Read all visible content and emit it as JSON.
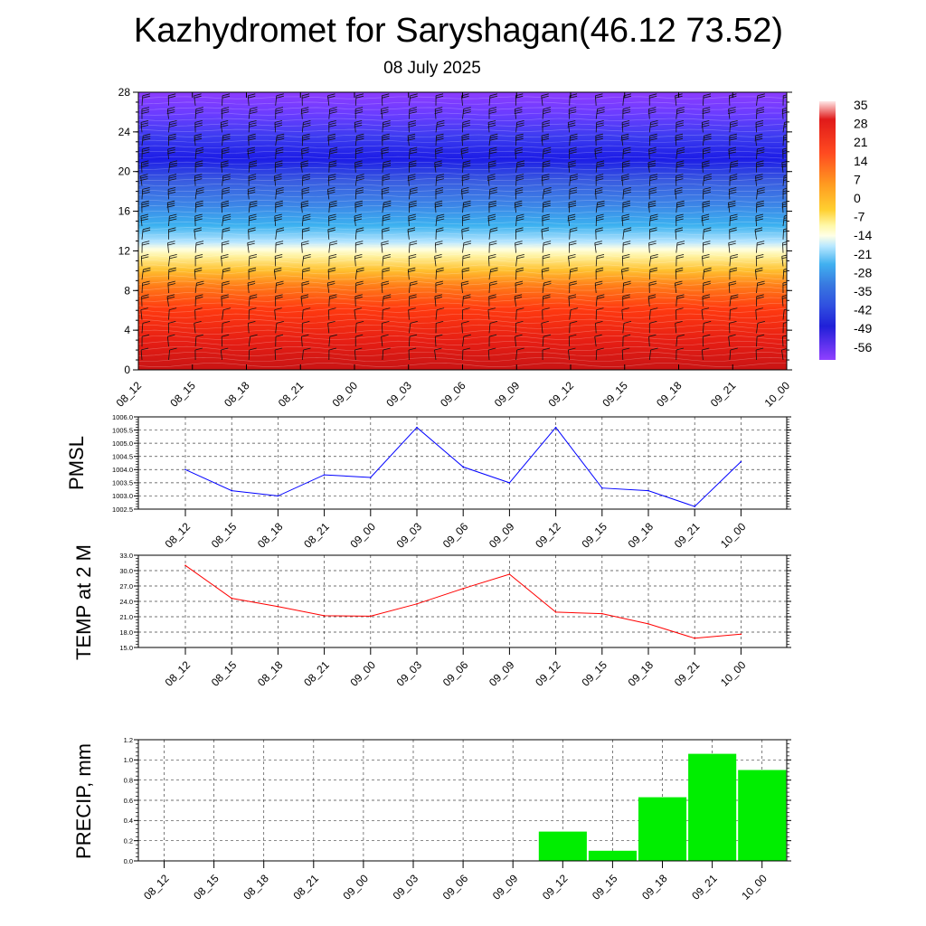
{
  "title": "Kazhydromet for Saryshagan(46.12 73.52)",
  "subtitle": "08 July 2025",
  "time_labels": [
    "08_12",
    "08_15",
    "08_18",
    "08_21",
    "09_00",
    "09_03",
    "09_06",
    "09_09",
    "09_12",
    "09_15",
    "09_18",
    "09_21",
    "10_00"
  ],
  "chart_data": [
    {
      "type": "heatmap",
      "title": "",
      "xlabel": "",
      "ylabel": "",
      "x": [
        "08_12",
        "08_15",
        "08_18",
        "08_21",
        "09_00",
        "09_03",
        "09_06",
        "09_09",
        "09_12",
        "09_15",
        "09_18",
        "09_21",
        "10_00"
      ],
      "y_ticks": [
        0,
        4,
        8,
        12,
        16,
        20,
        24,
        28
      ],
      "ylim": [
        0,
        28
      ],
      "colorbar_labels": [
        "35",
        "28",
        "21",
        "14",
        "7",
        "0",
        "-7",
        "-14",
        "-21",
        "-28",
        "-35",
        "-42",
        "-49",
        "-56"
      ],
      "temperature_profile": [
        {
          "height": 0,
          "temp": 32
        },
        {
          "height": 2,
          "temp": 28
        },
        {
          "height": 4,
          "temp": 22
        },
        {
          "height": 6,
          "temp": 17
        },
        {
          "height": 8,
          "temp": 10
        },
        {
          "height": 10,
          "temp": 3
        },
        {
          "height": 12,
          "temp": -5
        },
        {
          "height": 13,
          "temp": -12
        },
        {
          "height": 14,
          "temp": -20
        },
        {
          "height": 16,
          "temp": -30
        },
        {
          "height": 18,
          "temp": -40
        },
        {
          "height": 20,
          "temp": -46
        },
        {
          "height": 22,
          "temp": -52
        },
        {
          "height": 24,
          "temp": -50
        },
        {
          "height": 26,
          "temp": -56
        },
        {
          "height": 28,
          "temp": -58
        }
      ],
      "wind_barbs": true,
      "colors": {
        "scale": [
          "#ffe8e8",
          "#e01a1a",
          "#ff5020",
          "#ff9a20",
          "#ffd030",
          "#fff8a0",
          "#ffffe0",
          "#b8e8ff",
          "#40b0f0",
          "#3070e0",
          "#3040e0",
          "#2020d0",
          "#7040ff",
          "#9040ff"
        ]
      }
    },
    {
      "type": "line",
      "ylabel": "PMSL",
      "x": [
        "08_12",
        "08_15",
        "08_18",
        "08_21",
        "09_00",
        "09_03",
        "09_06",
        "09_09",
        "09_12",
        "09_15",
        "09_18",
        "09_21",
        "10_00"
      ],
      "series": [
        {
          "values": [
            1004.0,
            1003.2,
            1003.0,
            1003.8,
            1003.7,
            1005.6,
            1004.1,
            1003.5,
            1005.6,
            1003.3,
            1003.2,
            1002.6,
            1004.3
          ]
        }
      ],
      "y_ticks": [
        "1006.0",
        "1005.5",
        "1005.0",
        "1004.5",
        "1004.0",
        "1003.5",
        "1003.0",
        "1002.5"
      ],
      "ylim": [
        1002.5,
        1006.0
      ],
      "grid": true,
      "color": "#0000ff"
    },
    {
      "type": "line",
      "ylabel": "TEMP at 2 M",
      "x": [
        "08_12",
        "08_15",
        "08_18",
        "08_21",
        "09_00",
        "09_03",
        "09_06",
        "09_09",
        "09_12",
        "09_15",
        "09_18",
        "09_21",
        "10_00"
      ],
      "series": [
        {
          "values": [
            31.0,
            24.6,
            23.0,
            21.2,
            21.1,
            23.5,
            26.5,
            29.3,
            21.9,
            21.6,
            19.6,
            16.8,
            17.6
          ]
        }
      ],
      "y_ticks": [
        "33.0",
        "30.0",
        "27.0",
        "24.0",
        "21.0",
        "18.0",
        "15.0"
      ],
      "ylim": [
        15.0,
        33.0
      ],
      "grid": true,
      "color": "#ff0000"
    },
    {
      "type": "bar",
      "ylabel": "PRECIP, mm",
      "categories": [
        "08_12",
        "08_15",
        "08_18",
        "08_21",
        "09_00",
        "09_03",
        "09_06",
        "09_09",
        "09_12",
        "09_15",
        "09_18",
        "09_21",
        "10_00"
      ],
      "values": [
        0,
        0,
        0,
        0,
        0,
        0,
        0,
        0,
        0.29,
        0.1,
        0.63,
        1.06,
        0.9
      ],
      "y_ticks": [
        "1.2",
        "1.0",
        "0.8",
        "0.6",
        "0.4",
        "0.2",
        "0.0"
      ],
      "ylim": [
        0,
        1.2
      ],
      "grid": true,
      "color": "#00ee00"
    }
  ]
}
